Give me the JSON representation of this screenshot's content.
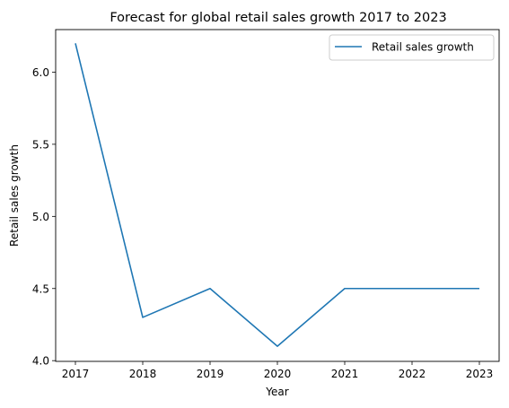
{
  "chart_data": {
    "type": "line",
    "title": "Forecast for global retail sales growth 2017 to 2023",
    "xlabel": "Year",
    "ylabel": "Retail sales growth",
    "x": [
      "2017",
      "2018",
      "2019",
      "2020",
      "2021",
      "2022",
      "2023"
    ],
    "series": [
      {
        "name": "Retail sales growth",
        "values": [
          6.2,
          4.3,
          4.5,
          4.1,
          4.5,
          4.5,
          4.5
        ],
        "color": "#1f77b4"
      }
    ],
    "ylim": [
      3.995,
      6.295
    ],
    "yticks": [
      "4.0",
      "4.5",
      "5.0",
      "5.5",
      "6.0"
    ],
    "grid": false,
    "legend_position": "top-right"
  }
}
